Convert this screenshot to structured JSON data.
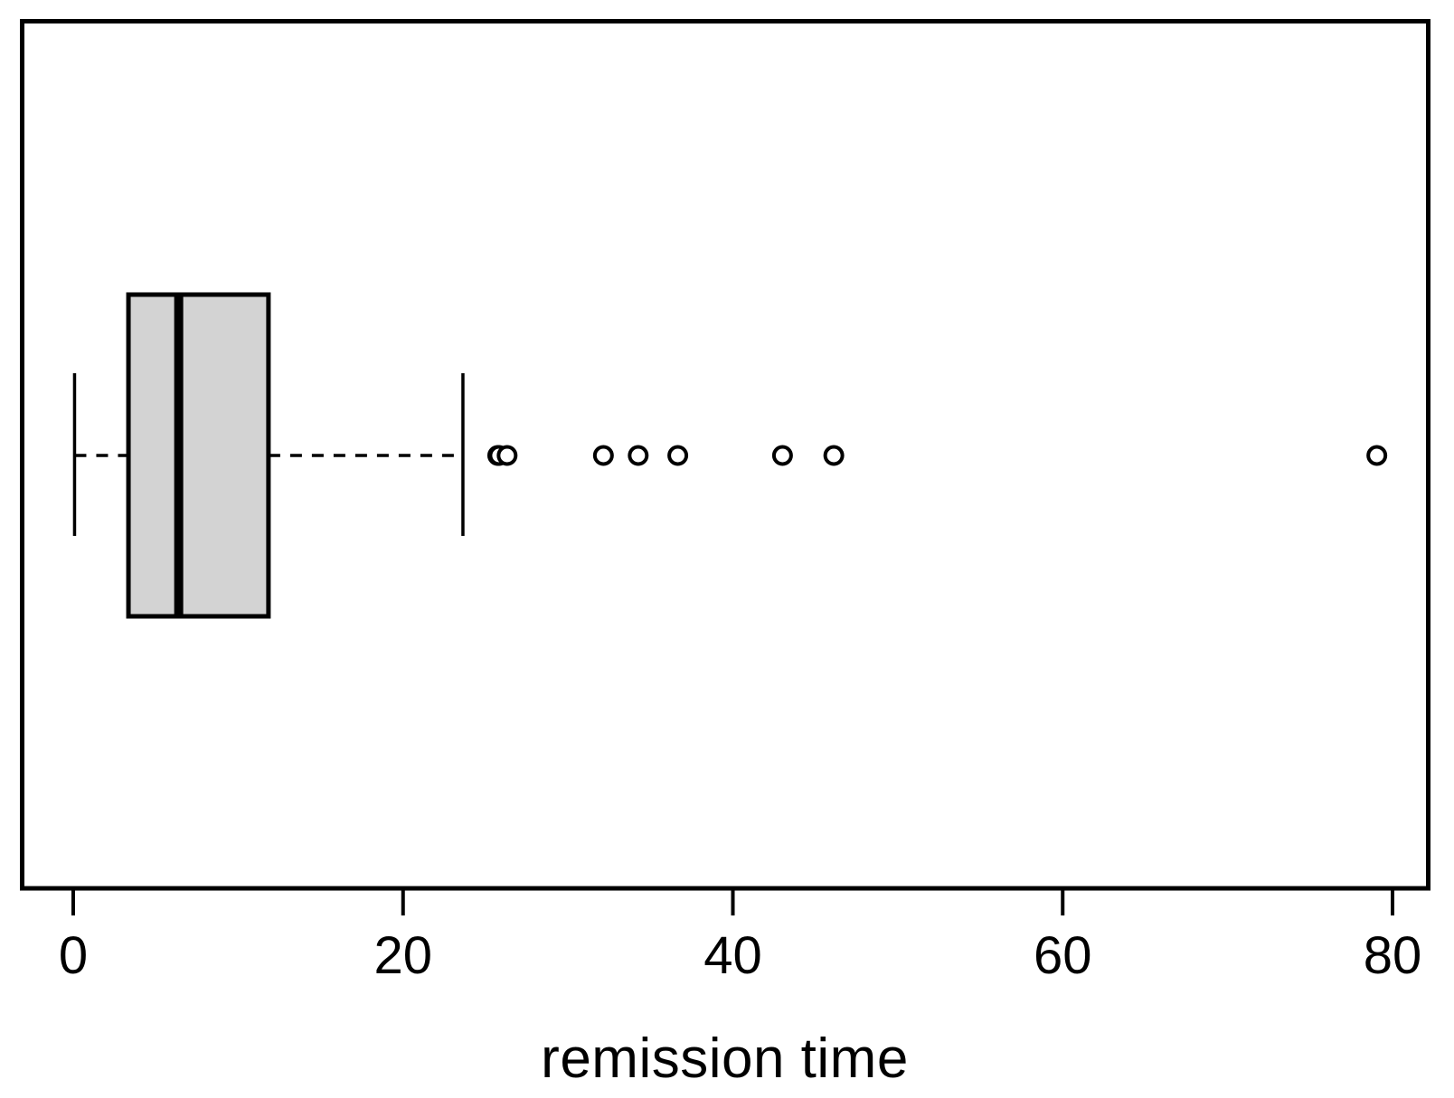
{
  "figure": {
    "background": "#ffffff"
  },
  "chart_data": {
    "type": "boxplot",
    "orientation": "horizontal",
    "title": "",
    "xlabel": "remission time",
    "ylabel": "",
    "x_ticks": [
      0,
      20,
      40,
      60,
      80
    ],
    "xlim": [
      -3.1,
      82.2
    ],
    "grid": false,
    "legend": null,
    "series": [
      {
        "name": "remission time",
        "stats": {
          "whisker_low": 0.08,
          "q1": 3.348,
          "median": 6.395,
          "q3": 11.838,
          "whisker_high": 23.63
        },
        "outliers": [
          25.74,
          25.82,
          26.31,
          32.15,
          34.26,
          36.66,
          43.01,
          46.12,
          79.05
        ]
      }
    ],
    "colors": {
      "box_fill": "#d3d3d3",
      "line": "#000000",
      "background": "#ffffff"
    }
  }
}
